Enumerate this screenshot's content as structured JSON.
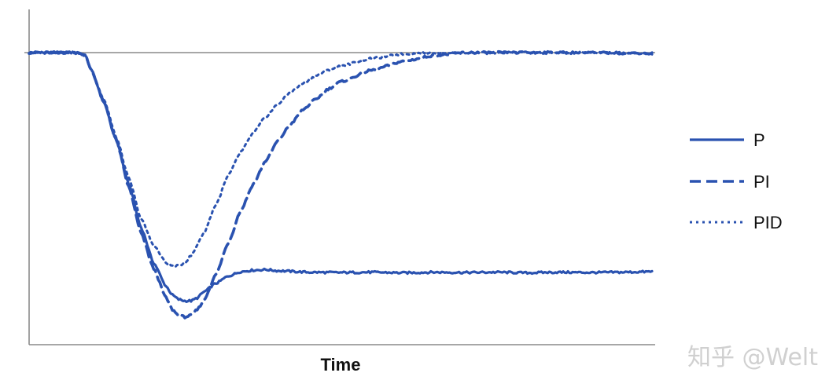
{
  "chart_data": {
    "type": "line",
    "title": "",
    "xlabel": "Time",
    "ylabel": "",
    "xlim": [
      0,
      100
    ],
    "ylim": [
      0,
      100
    ],
    "grid": false,
    "legend_position": "right",
    "reference_line": {
      "y": 100
    },
    "series": [
      {
        "name": "P",
        "style": "solid",
        "color": "#2a52b0",
        "points": [
          [
            0,
            100
          ],
          [
            8,
            100
          ],
          [
            9,
            99
          ],
          [
            10,
            94
          ],
          [
            12,
            83
          ],
          [
            14,
            70
          ],
          [
            16,
            55
          ],
          [
            18,
            40
          ],
          [
            20,
            28
          ],
          [
            22,
            20
          ],
          [
            23,
            17
          ],
          [
            24,
            15.5
          ],
          [
            25,
            15
          ],
          [
            26,
            15
          ],
          [
            27,
            16
          ],
          [
            28,
            18
          ],
          [
            30,
            21
          ],
          [
            32,
            23.5
          ],
          [
            34,
            25
          ],
          [
            36,
            25.5
          ],
          [
            38,
            25.7
          ],
          [
            40,
            25.3
          ],
          [
            45,
            24.8
          ],
          [
            50,
            24.7
          ],
          [
            55,
            24.8
          ],
          [
            60,
            24.6
          ],
          [
            65,
            24.8
          ],
          [
            70,
            24.7
          ],
          [
            75,
            24.8
          ],
          [
            80,
            24.6
          ],
          [
            85,
            24.8
          ],
          [
            90,
            24.7
          ],
          [
            95,
            24.8
          ],
          [
            100,
            25
          ]
        ]
      },
      {
        "name": "PI",
        "style": "dashed",
        "color": "#2a52b0",
        "points": [
          [
            0,
            100
          ],
          [
            8,
            100
          ],
          [
            9,
            99
          ],
          [
            10,
            94
          ],
          [
            12,
            83
          ],
          [
            14,
            70
          ],
          [
            16,
            54
          ],
          [
            18,
            38
          ],
          [
            20,
            26
          ],
          [
            22,
            16
          ],
          [
            23,
            12
          ],
          [
            24,
            10
          ],
          [
            25,
            9.5
          ],
          [
            26,
            10
          ],
          [
            27,
            12
          ],
          [
            28,
            15
          ],
          [
            30,
            24
          ],
          [
            32,
            35
          ],
          [
            34,
            46
          ],
          [
            36,
            55
          ],
          [
            38,
            63
          ],
          [
            40,
            70
          ],
          [
            42,
            75.5
          ],
          [
            44,
            80.5
          ],
          [
            46,
            84
          ],
          [
            48,
            87.5
          ],
          [
            50,
            90
          ],
          [
            55,
            94
          ],
          [
            60,
            97
          ],
          [
            65,
            99
          ],
          [
            70,
            100
          ],
          [
            80,
            100
          ],
          [
            90,
            100
          ],
          [
            100,
            99.7
          ]
        ]
      },
      {
        "name": "PID",
        "style": "dotted",
        "color": "#2a52b0",
        "points": [
          [
            0,
            100
          ],
          [
            8,
            100
          ],
          [
            9,
            99
          ],
          [
            10,
            94
          ],
          [
            12,
            84
          ],
          [
            14,
            71
          ],
          [
            16,
            57
          ],
          [
            18,
            43
          ],
          [
            20,
            34
          ],
          [
            22,
            28
          ],
          [
            23,
            27
          ],
          [
            24,
            27
          ],
          [
            25,
            28
          ],
          [
            26,
            30.5
          ],
          [
            28,
            38
          ],
          [
            30,
            48
          ],
          [
            32,
            58
          ],
          [
            34,
            66
          ],
          [
            36,
            72.5
          ],
          [
            38,
            78
          ],
          [
            40,
            82.5
          ],
          [
            42,
            86.5
          ],
          [
            44,
            89.5
          ],
          [
            46,
            92
          ],
          [
            48,
            94
          ],
          [
            50,
            95.5
          ],
          [
            55,
            98
          ],
          [
            60,
            99.5
          ],
          [
            65,
            100
          ],
          [
            70,
            100
          ],
          [
            80,
            100
          ],
          [
            90,
            100
          ],
          [
            100,
            99.7
          ]
        ]
      }
    ]
  },
  "watermark": {
    "text": "知乎 @Welt"
  }
}
